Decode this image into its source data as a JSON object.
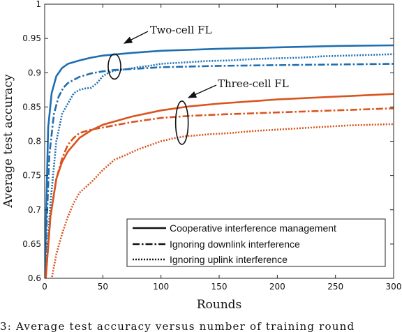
{
  "chart_data": {
    "type": "line",
    "xlabel": "Rounds",
    "ylabel": "Average test accuracy",
    "xlim": [
      0,
      300
    ],
    "ylim": [
      0.6,
      1.0
    ],
    "xticks": [
      0,
      50,
      100,
      150,
      200,
      250,
      300
    ],
    "yticks": [
      0.6,
      0.65,
      0.7,
      0.75,
      0.8,
      0.85,
      0.9,
      0.95,
      1
    ],
    "ytick_labels": [
      "0.6",
      "0.65",
      "0.7",
      "0.75",
      "0.8",
      "0.85",
      "0.9",
      "0.95",
      "1"
    ],
    "grid": false,
    "legend_position": "bottom-right",
    "legend": [
      {
        "label": "Cooperative interference management",
        "style": "solid"
      },
      {
        "label": "Ignoring downlink interference",
        "style": "dashdot"
      },
      {
        "label": "Ignoring uplink interference",
        "style": "dotted"
      }
    ],
    "annotations": [
      {
        "text": "Two-cell FL",
        "target_round": 60,
        "target_accuracy": 0.909
      },
      {
        "text": "Three-cell FL",
        "target_round": 118,
        "target_accuracy": 0.827
      }
    ],
    "colors": {
      "two_cell": "#1f6eb0",
      "three_cell": "#d9541e"
    },
    "series": [
      {
        "group": "two_cell",
        "style": "solid",
        "x": [
          0,
          3,
          6,
          10,
          15,
          20,
          30,
          40,
          50,
          75,
          100,
          150,
          200,
          250,
          300
        ],
        "y": [
          0.6,
          0.82,
          0.87,
          0.895,
          0.907,
          0.913,
          0.918,
          0.922,
          0.925,
          0.929,
          0.932,
          0.935,
          0.937,
          0.939,
          0.94
        ]
      },
      {
        "group": "two_cell",
        "style": "dashdot",
        "x": [
          0,
          4,
          8,
          12,
          16,
          20,
          30,
          40,
          50,
          60,
          80,
          100,
          150,
          200,
          250,
          300
        ],
        "y": [
          0.6,
          0.78,
          0.84,
          0.865,
          0.878,
          0.885,
          0.894,
          0.899,
          0.902,
          0.904,
          0.906,
          0.908,
          0.91,
          0.911,
          0.912,
          0.913
        ]
      },
      {
        "group": "two_cell",
        "style": "dotted",
        "x": [
          0,
          5,
          10,
          15,
          20,
          25,
          30,
          35,
          40,
          45,
          50,
          55,
          60,
          70,
          80,
          90,
          100,
          120,
          140,
          160,
          180,
          200,
          220,
          240,
          260,
          280,
          300
        ],
        "y": [
          0.58,
          0.71,
          0.8,
          0.84,
          0.855,
          0.87,
          0.875,
          0.877,
          0.878,
          0.885,
          0.895,
          0.9,
          0.903,
          0.905,
          0.908,
          0.91,
          0.913,
          0.915,
          0.917,
          0.918,
          0.92,
          0.921,
          0.922,
          0.924,
          0.925,
          0.926,
          0.927
        ]
      },
      {
        "group": "three_cell",
        "style": "solid",
        "x": [
          0,
          5,
          10,
          15,
          20,
          25,
          30,
          40,
          50,
          75,
          100,
          125,
          150,
          200,
          250,
          300
        ],
        "y": [
          0.58,
          0.69,
          0.745,
          0.77,
          0.785,
          0.795,
          0.805,
          0.816,
          0.824,
          0.836,
          0.845,
          0.851,
          0.855,
          0.861,
          0.865,
          0.869
        ]
      },
      {
        "group": "three_cell",
        "style": "dashdot",
        "x": [
          0,
          5,
          10,
          15,
          20,
          25,
          30,
          40,
          50,
          75,
          100,
          125,
          150,
          200,
          250,
          300
        ],
        "y": [
          0.58,
          0.69,
          0.745,
          0.775,
          0.795,
          0.805,
          0.812,
          0.817,
          0.82,
          0.828,
          0.834,
          0.837,
          0.839,
          0.842,
          0.845,
          0.848
        ]
      },
      {
        "group": "three_cell",
        "style": "dotted",
        "x": [
          0,
          5,
          10,
          15,
          20,
          25,
          30,
          40,
          50,
          60,
          70,
          80,
          90,
          100,
          110,
          120,
          140,
          160,
          180,
          200,
          220,
          240,
          260,
          280,
          300
        ],
        "y": [
          0.55,
          0.59,
          0.635,
          0.665,
          0.69,
          0.71,
          0.725,
          0.74,
          0.758,
          0.773,
          0.78,
          0.788,
          0.794,
          0.8,
          0.804,
          0.807,
          0.81,
          0.812,
          0.815,
          0.817,
          0.819,
          0.821,
          0.823,
          0.824,
          0.825
        ]
      }
    ]
  },
  "caption": "3: Average test accuracy versus number of training round"
}
